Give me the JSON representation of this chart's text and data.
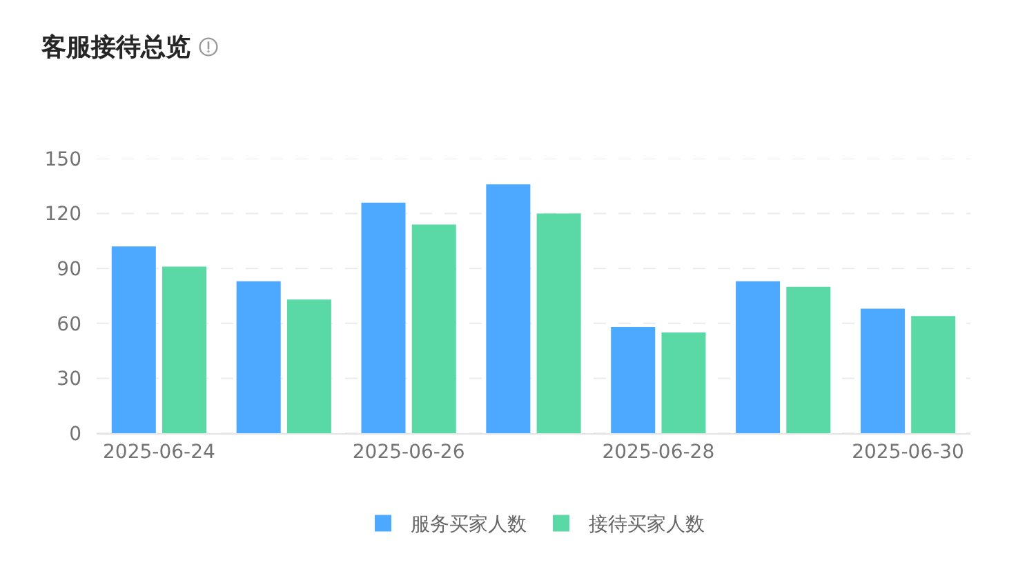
{
  "chart_data": {
    "type": "bar",
    "title": "客服接待总览",
    "categories": [
      "2025-06-24",
      null,
      "2025-06-26",
      null,
      "2025-06-28",
      null,
      "2025-06-30"
    ],
    "series": [
      {
        "name": "服务买家人数",
        "color": "#4da8ff",
        "values": [
          102,
          83,
          126,
          136,
          58,
          83,
          68
        ]
      },
      {
        "name": "接待买家人数",
        "color": "#5ad8a6",
        "values": [
          91,
          73,
          114,
          120,
          55,
          80,
          64
        ]
      }
    ],
    "ylim": [
      0,
      150
    ],
    "yticks": [
      0,
      30,
      60,
      90,
      120,
      150
    ],
    "grid": "y",
    "legend": "bottom"
  }
}
